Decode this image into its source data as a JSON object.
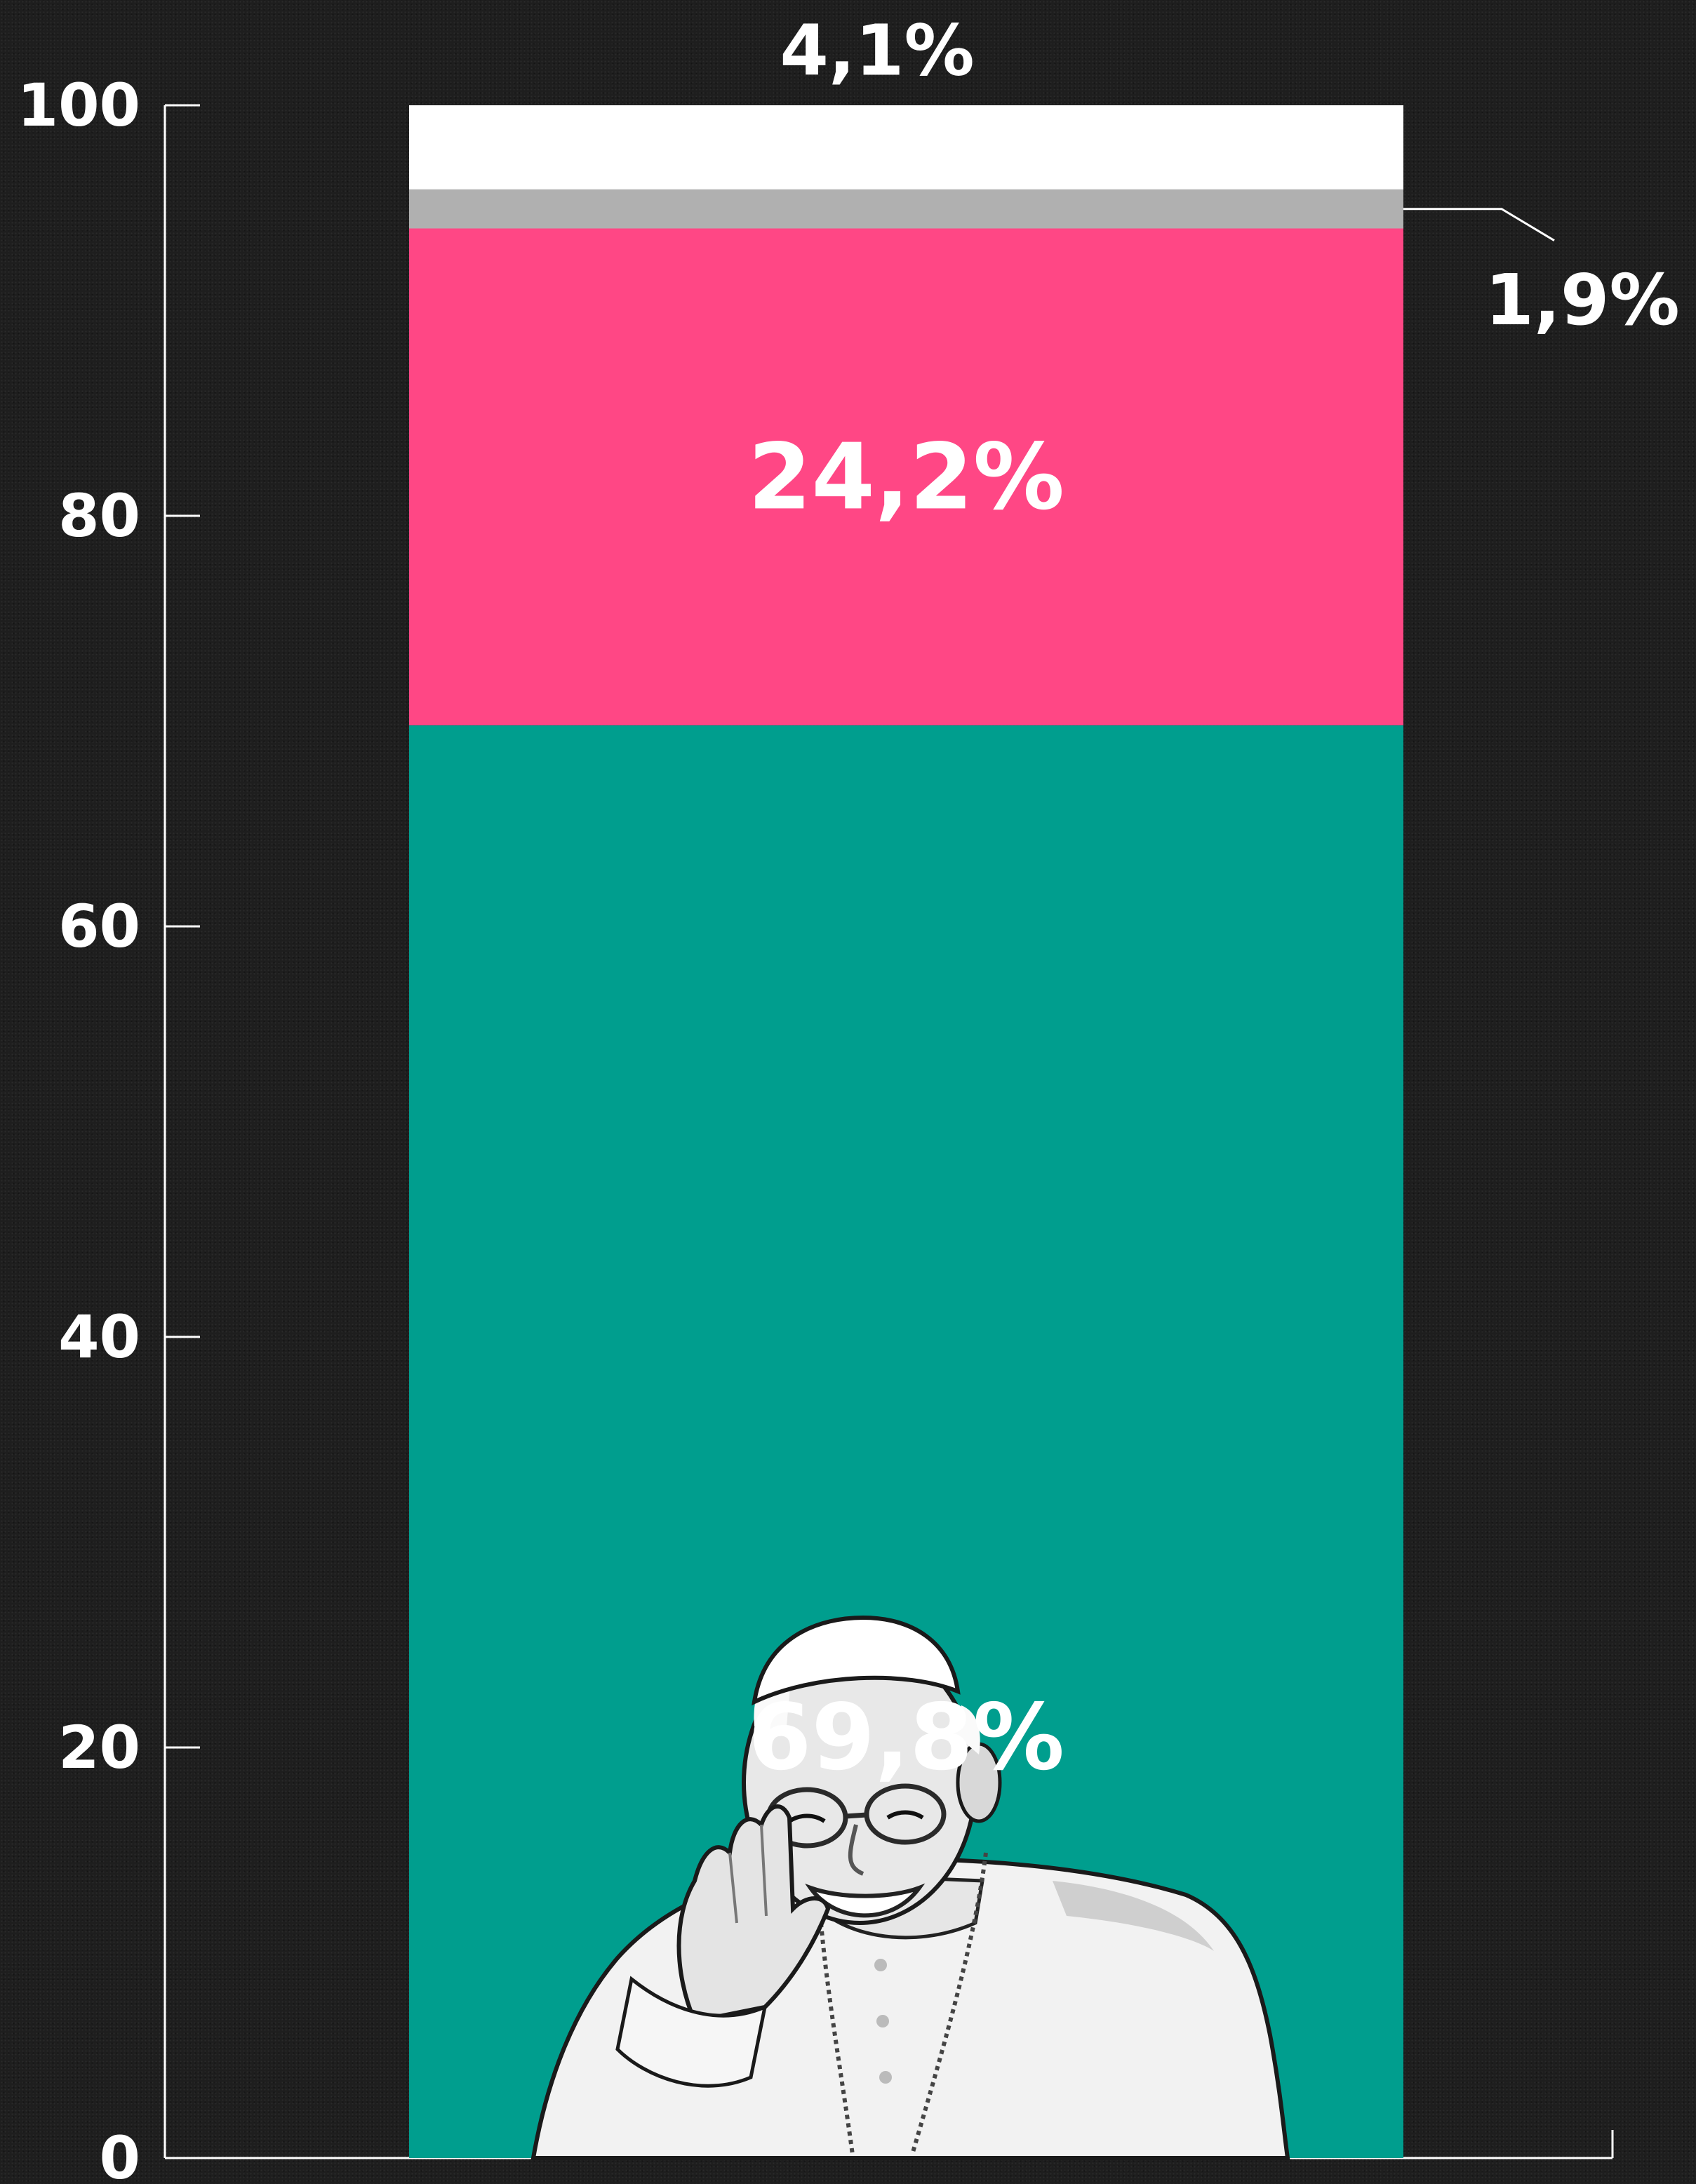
{
  "chart_data": {
    "type": "bar",
    "stacked": true,
    "categories": [
      ""
    ],
    "series": [
      {
        "values": [
          69.8
        ],
        "label": "69,8%",
        "color": "#009e8e"
      },
      {
        "values": [
          24.2
        ],
        "label": "24,2%",
        "color": "#ff4785"
      },
      {
        "values": [
          1.9
        ],
        "label": "1,9%",
        "color": "#b0b0b0"
      },
      {
        "values": [
          4.1
        ],
        "label": "4,1%",
        "color": "#ffffff"
      }
    ],
    "yticks": [
      {
        "value": 0,
        "label": "0"
      },
      {
        "value": 20,
        "label": "20"
      },
      {
        "value": 40,
        "label": "40"
      },
      {
        "value": 60,
        "label": "60"
      },
      {
        "value": 80,
        "label": "80"
      },
      {
        "value": 100,
        "label": "100"
      }
    ],
    "ylim": [
      0,
      100
    ],
    "title": "",
    "xlabel": "",
    "ylabel": "",
    "grid": false,
    "legend": "none"
  },
  "photo": {
    "icon": "waving-person-photo"
  }
}
